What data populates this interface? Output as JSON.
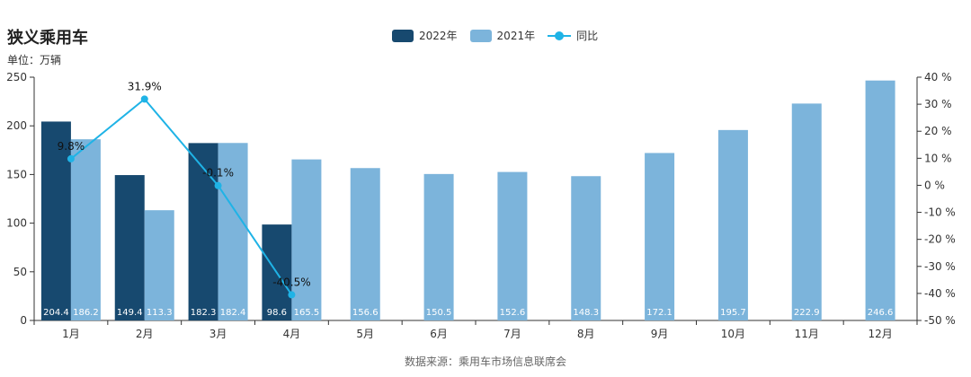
{
  "title": "狭义乘用车",
  "unit_label": "单位：万辆",
  "source": "数据来源：乘用车市场信息联席会",
  "legend": {
    "series_2022": "2022年",
    "series_2021": "2021年",
    "yoy": "同比"
  },
  "colors": {
    "series_2022": "#17496f",
    "series_2021": "#7cb4db",
    "yoy": "#1fb3e6"
  },
  "chart_data": {
    "type": "bar",
    "title": "狭义乘用车",
    "unit": "万辆",
    "categories": [
      "1月",
      "2月",
      "3月",
      "4月",
      "5月",
      "6月",
      "7月",
      "8月",
      "9月",
      "10月",
      "11月",
      "12月"
    ],
    "series": [
      {
        "name": "2022年",
        "values": [
          204.4,
          149.4,
          182.3,
          98.6,
          null,
          null,
          null,
          null,
          null,
          null,
          null,
          null
        ]
      },
      {
        "name": "2021年",
        "values": [
          186.2,
          113.3,
          182.4,
          165.5,
          156.6,
          150.5,
          152.6,
          148.3,
          172.1,
          195.7,
          222.9,
          246.6
        ]
      }
    ],
    "line_series": {
      "name": "同比",
      "axis": "right",
      "values": [
        9.8,
        31.9,
        -0.1,
        -40.5,
        null,
        null,
        null,
        null,
        null,
        null,
        null,
        null
      ],
      "labels": [
        "9.8%",
        "31.9%",
        "-0.1%",
        "-40.5%"
      ]
    },
    "ylim_left": [
      0,
      250
    ],
    "yticks_left": [
      0,
      50,
      100,
      150,
      200,
      250
    ],
    "ylim_right": [
      -50,
      40
    ],
    "yticks_right": [
      -50,
      -40,
      -30,
      -20,
      -10,
      0,
      10,
      20,
      30,
      40
    ],
    "ytick_labels_right": [
      "-50 %",
      "-40 %",
      "-30 %",
      "-20 %",
      "-10 %",
      "0 %",
      "10 %",
      "20 %",
      "30 %",
      "40 %"
    ],
    "grid": false,
    "legend_position": "top-center"
  }
}
